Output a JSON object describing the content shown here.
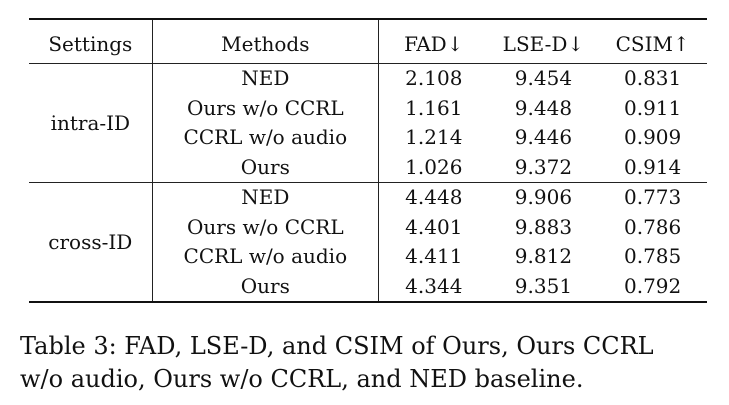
{
  "table": {
    "headers": {
      "settings": "Settings",
      "methods": "Methods",
      "fad": "FAD↓",
      "lse": "LSE-D↓",
      "csim": "CSIM↑"
    },
    "groups": [
      {
        "setting": "intra-ID",
        "rows": [
          {
            "method": "NED",
            "fad": "2.108",
            "lse": "9.454",
            "csim": "0.831"
          },
          {
            "method": "Ours w/o CCRL",
            "fad": "1.161",
            "lse": "9.448",
            "csim": "0.911"
          },
          {
            "method": "CCRL w/o audio",
            "fad": "1.214",
            "lse": "9.446",
            "csim": "0.909"
          },
          {
            "method": "Ours",
            "fad": "1.026",
            "lse": "9.372",
            "csim": "0.914"
          }
        ]
      },
      {
        "setting": "cross-ID",
        "rows": [
          {
            "method": "NED",
            "fad": "4.448",
            "lse": "9.906",
            "csim": "0.773"
          },
          {
            "method": "Ours w/o CCRL",
            "fad": "4.401",
            "lse": "9.883",
            "csim": "0.786"
          },
          {
            "method": "CCRL w/o audio",
            "fad": "4.411",
            "lse": "9.812",
            "csim": "0.785"
          },
          {
            "method": "Ours",
            "fad": "4.344",
            "lse": "9.351",
            "csim": "0.792"
          }
        ]
      }
    ]
  },
  "caption": {
    "line1": "Table 3: FAD, LSE-D, and CSIM of Ours, Ours CCRL",
    "line2": "w/o audio, Ours w/o CCRL, and NED baseline."
  }
}
